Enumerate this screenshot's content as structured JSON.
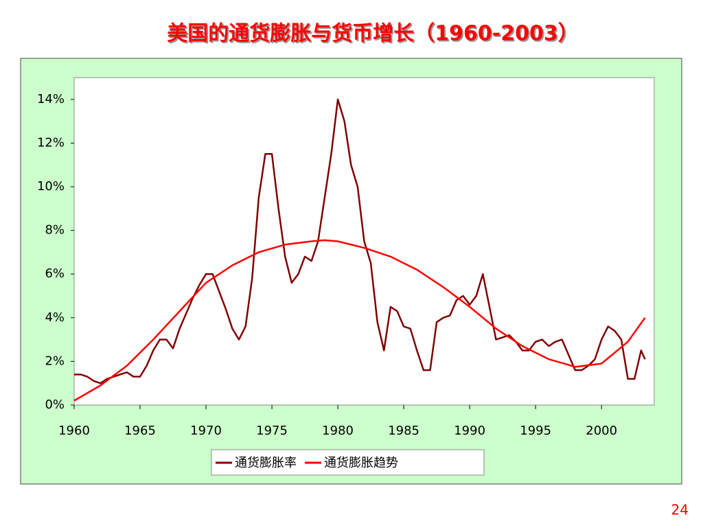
{
  "chart_data": {
    "type": "line",
    "title": "美国的通货膨胀与货币增长（1960-2003）",
    "xlim": [
      1960,
      2004
    ],
    "xticks": [
      1960,
      1965,
      1970,
      1975,
      1980,
      1985,
      1990,
      1995,
      2000
    ],
    "ylim": [
      0,
      15
    ],
    "yticks": [
      {
        "value": 0,
        "label": "0%"
      },
      {
        "value": 2,
        "label": "2%"
      },
      {
        "value": 4,
        "label": "4%"
      },
      {
        "value": 6,
        "label": "6%"
      },
      {
        "value": 8,
        "label": "8%"
      },
      {
        "value": 10,
        "label": "10%"
      },
      {
        "value": 12,
        "label": "12%"
      },
      {
        "value": 14,
        "label": "14%"
      }
    ],
    "legend": "bottom",
    "series": [
      {
        "name": "通货膨胀率",
        "color": "#800000",
        "x": [
          1960,
          1960.5,
          1961,
          1961.5,
          1962,
          1962.5,
          1963,
          1963.5,
          1964,
          1964.5,
          1965,
          1965.5,
          1966,
          1966.5,
          1967,
          1967.5,
          1968,
          1968.5,
          1969,
          1969.5,
          1970,
          1970.5,
          1971,
          1971.5,
          1972,
          1972.5,
          1973,
          1973.5,
          1974,
          1974.5,
          1975,
          1975.5,
          1976,
          1976.5,
          1977,
          1977.5,
          1978,
          1978.5,
          1979,
          1979.5,
          1980,
          1980.5,
          1981,
          1981.5,
          1982,
          1982.5,
          1983,
          1983.5,
          1984,
          1984.5,
          1985,
          1985.5,
          1986,
          1986.5,
          1987,
          1987.5,
          1988,
          1988.5,
          1989,
          1989.5,
          1990,
          1990.5,
          1991,
          1991.5,
          1992,
          1992.5,
          1993,
          1993.5,
          1994,
          1994.5,
          1995,
          1995.5,
          1996,
          1996.5,
          1997,
          1997.5,
          1998,
          1998.5,
          1999,
          1999.5,
          2000,
          2000.5,
          2001,
          2001.5,
          2002,
          2002.5,
          2003,
          2003.3
        ],
        "values": [
          1.4,
          1.4,
          1.3,
          1.1,
          1.0,
          1.2,
          1.3,
          1.4,
          1.5,
          1.3,
          1.3,
          1.8,
          2.5,
          3.0,
          3.0,
          2.6,
          3.5,
          4.2,
          4.9,
          5.5,
          6.0,
          6.0,
          5.2,
          4.4,
          3.5,
          3.0,
          3.6,
          5.8,
          9.5,
          11.5,
          11.5,
          9.0,
          6.8,
          5.6,
          6.0,
          6.8,
          6.6,
          7.5,
          9.5,
          11.5,
          14.0,
          13.0,
          11.0,
          10.0,
          7.5,
          6.5,
          3.8,
          2.5,
          4.5,
          4.3,
          3.6,
          3.5,
          2.5,
          1.6,
          1.6,
          3.8,
          4.0,
          4.1,
          4.8,
          5.0,
          4.6,
          5.0,
          6.0,
          4.5,
          3.0,
          3.1,
          3.2,
          2.9,
          2.5,
          2.5,
          2.9,
          3.0,
          2.7,
          2.9,
          3.0,
          2.3,
          1.6,
          1.6,
          1.8,
          2.1,
          3.0,
          3.6,
          3.4,
          3.0,
          1.2,
          1.2,
          2.5,
          2.1
        ]
      },
      {
        "name": "通货膨胀趋势",
        "color": "#ff0000",
        "x": [
          1960,
          1962,
          1964,
          1966,
          1968,
          1970,
          1972,
          1974,
          1976,
          1978,
          1979,
          1980,
          1982,
          1984,
          1986,
          1988,
          1990,
          1992,
          1994,
          1996,
          1998,
          2000,
          2002,
          2003.3
        ],
        "values": [
          0.2,
          0.9,
          1.8,
          3.0,
          4.3,
          5.6,
          6.4,
          7.0,
          7.35,
          7.5,
          7.55,
          7.5,
          7.2,
          6.8,
          6.2,
          5.4,
          4.5,
          3.5,
          2.7,
          2.1,
          1.75,
          1.9,
          2.9,
          4.0
        ]
      }
    ]
  },
  "page_number": "24"
}
